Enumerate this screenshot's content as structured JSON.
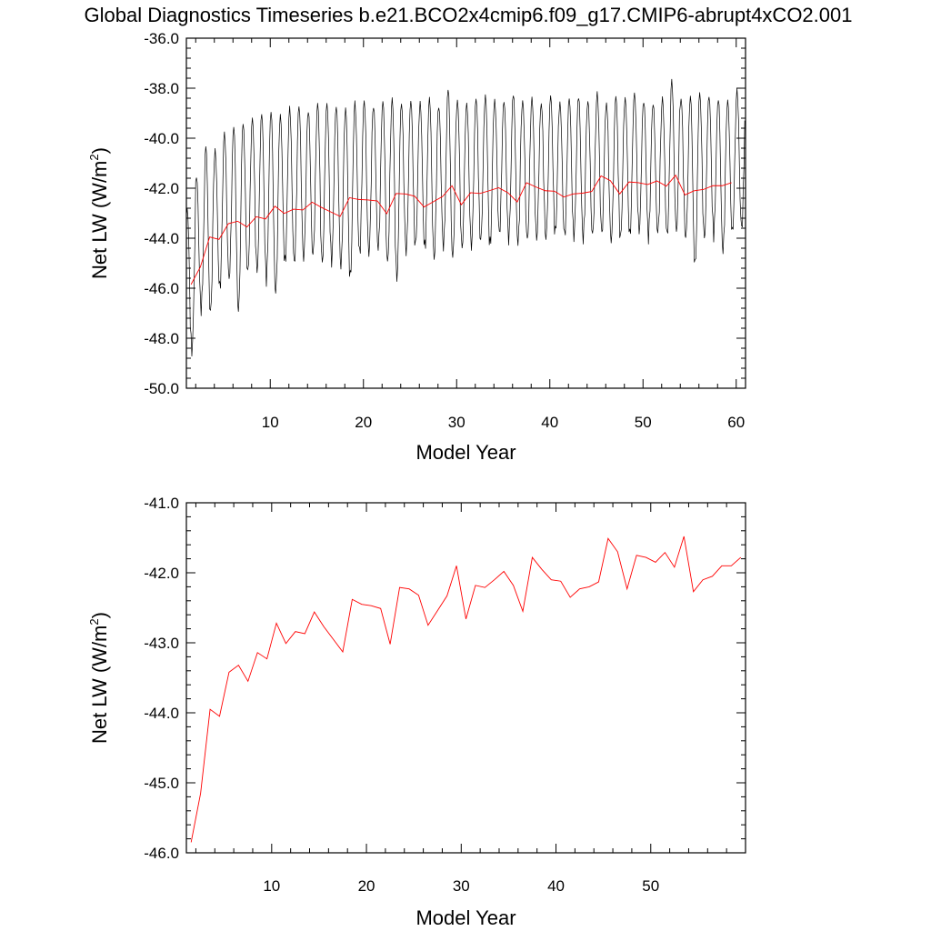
{
  "title": "Global Diagnostics Timeseries b.e21.BCO2x4cmip6.f09_g17.CMIP6-abrupt4xCO2.001",
  "colors": {
    "monthly": "#000000",
    "annual": "#ff0000",
    "axes": "#000000"
  },
  "chart_data": [
    {
      "type": "line",
      "xlabel": "Model Year",
      "ylabel_main": "Net LW (W/m",
      "ylabel_sup": "2",
      "ylabel_close": ")",
      "xlim": [
        1,
        61
      ],
      "ylim": [
        -50,
        -36
      ],
      "xticks": [
        10,
        20,
        30,
        40,
        50,
        60
      ],
      "xtick_labels": [
        "10",
        "20",
        "30",
        "40",
        "50",
        "60"
      ],
      "yticks": [
        -50,
        -48,
        -46,
        -44,
        -42,
        -40,
        -38,
        -36
      ],
      "ytick_labels": [
        "-50.0",
        "-48.0",
        "-46.0",
        "-44.0",
        "-42.0",
        "-40.0",
        "-38.0",
        "-36.0"
      ],
      "grid": false,
      "series": [
        {
          "kind": "monthly",
          "color": "#000000",
          "start_year": 1,
          "peaks": [
            -42.8,
            -41.5,
            -40.3,
            -40.5,
            -39.8,
            -39.5,
            -39.4,
            -39.2,
            -39.0,
            -38.9,
            -39.1,
            -38.8,
            -38.7,
            -38.9,
            -38.6,
            -38.6,
            -38.7,
            -38.8,
            -38.6,
            -38.5,
            -38.7,
            -38.5,
            -38.4,
            -38.6,
            -38.5,
            -38.6,
            -38.4,
            -38.7,
            -38.0,
            -38.5,
            -38.6,
            -38.4,
            -38.3,
            -38.5,
            -38.5,
            -38.2,
            -38.5,
            -38.4,
            -38.6,
            -38.3,
            -38.6,
            -38.4,
            -38.3,
            -38.5,
            -38.2,
            -38.6,
            -38.3,
            -38.4,
            -38.2,
            -38.5,
            -38.6,
            -38.4,
            -37.7,
            -38.4,
            -38.3,
            -38.2,
            -38.3,
            -38.4,
            -38.5,
            -38.1
          ],
          "troughs": [
            -48.5,
            -46.8,
            -47.0,
            -46.0,
            -45.6,
            -46.9,
            -45.4,
            -45.3,
            -45.6,
            -46.2,
            -45.0,
            -45.0,
            -44.8,
            -44.7,
            -45.0,
            -44.9,
            -45.1,
            -45.6,
            -44.6,
            -44.6,
            -44.4,
            -45.0,
            -45.6,
            -44.5,
            -44.3,
            -44.4,
            -44.8,
            -44.3,
            -44.8,
            -44.4,
            -44.3,
            -44.1,
            -44.3,
            -43.8,
            -44.0,
            -44.2,
            -44.1,
            -44.0,
            -44.0,
            -43.8,
            -43.9,
            -43.9,
            -44.0,
            -43.9,
            -43.8,
            -44.1,
            -44.0,
            -43.9,
            -43.7,
            -43.9,
            -43.8,
            -43.9,
            -43.7,
            -44.0,
            -45.1,
            -44.0,
            -43.8,
            -44.5,
            -43.8,
            -43.6
          ]
        },
        {
          "kind": "annual",
          "color": "#ff0000",
          "x": [
            1.5,
            2.5,
            3.5,
            4.5,
            5.5,
            6.5,
            7.5,
            8.5,
            9.5,
            10.5,
            11.5,
            12.5,
            13.5,
            14.5,
            15.5,
            16.5,
            17.5,
            18.5,
            19.5,
            20.5,
            21.5,
            22.5,
            23.5,
            24.5,
            25.5,
            26.5,
            27.5,
            28.5,
            29.5,
            30.5,
            31.5,
            32.5,
            33.5,
            34.5,
            35.5,
            36.5,
            37.5,
            38.5,
            39.5,
            40.5,
            41.5,
            42.5,
            43.5,
            44.5,
            45.5,
            46.5,
            47.5,
            48.5,
            49.5,
            50.5,
            51.5,
            52.5,
            53.5,
            54.5,
            55.5,
            56.5,
            57.5,
            58.5,
            59.5
          ],
          "y": [
            -45.85,
            -45.15,
            -43.95,
            -44.05,
            -43.42,
            -43.32,
            -43.55,
            -43.14,
            -43.23,
            -42.72,
            -43.01,
            -42.84,
            -42.87,
            -42.56,
            -42.77,
            -42.95,
            -43.13,
            -42.38,
            -42.45,
            -42.47,
            -42.51,
            -43.02,
            -42.21,
            -42.23,
            -42.32,
            -42.75,
            -42.54,
            -42.33,
            -41.9,
            -42.66,
            -42.18,
            -42.21,
            -42.1,
            -41.98,
            -42.18,
            -42.55,
            -41.78,
            -41.95,
            -42.1,
            -42.12,
            -42.35,
            -42.23,
            -42.2,
            -42.13,
            -41.51,
            -41.7,
            -42.23,
            -41.75,
            -41.78,
            -41.85,
            -41.71,
            -41.92,
            -41.48,
            -42.27,
            -42.1,
            -42.05,
            -41.9,
            -41.9,
            -41.78
          ]
        }
      ]
    },
    {
      "type": "line",
      "xlabel": "Model Year",
      "ylabel_main": "Net LW (W/m",
      "ylabel_sup": "2",
      "ylabel_close": ")",
      "xlim": [
        1,
        60
      ],
      "ylim": [
        -46,
        -41
      ],
      "xticks": [
        10,
        20,
        30,
        40,
        50
      ],
      "xtick_labels": [
        "10",
        "20",
        "30",
        "40",
        "50"
      ],
      "yticks": [
        -46,
        -45,
        -44,
        -43,
        -42,
        -41
      ],
      "ytick_labels": [
        "-46.0",
        "-45.0",
        "-44.0",
        "-43.0",
        "-42.0",
        "-41.0"
      ],
      "grid": false,
      "series": [
        {
          "kind": "annual",
          "color": "#ff0000",
          "x": [
            1.5,
            2.5,
            3.5,
            4.5,
            5.5,
            6.5,
            7.5,
            8.5,
            9.5,
            10.5,
            11.5,
            12.5,
            13.5,
            14.5,
            15.5,
            16.5,
            17.5,
            18.5,
            19.5,
            20.5,
            21.5,
            22.5,
            23.5,
            24.5,
            25.5,
            26.5,
            27.5,
            28.5,
            29.5,
            30.5,
            31.5,
            32.5,
            33.5,
            34.5,
            35.5,
            36.5,
            37.5,
            38.5,
            39.5,
            40.5,
            41.5,
            42.5,
            43.5,
            44.5,
            45.5,
            46.5,
            47.5,
            48.5,
            49.5,
            50.5,
            51.5,
            52.5,
            53.5,
            54.5,
            55.5,
            56.5,
            57.5,
            58.5,
            59.5
          ],
          "y": [
            -45.85,
            -45.15,
            -43.95,
            -44.05,
            -43.42,
            -43.32,
            -43.55,
            -43.14,
            -43.23,
            -42.72,
            -43.01,
            -42.84,
            -42.87,
            -42.56,
            -42.77,
            -42.95,
            -43.13,
            -42.38,
            -42.45,
            -42.47,
            -42.51,
            -43.02,
            -42.21,
            -42.23,
            -42.32,
            -42.75,
            -42.54,
            -42.33,
            -41.9,
            -42.66,
            -42.18,
            -42.21,
            -42.1,
            -41.98,
            -42.18,
            -42.55,
            -41.78,
            -41.95,
            -42.1,
            -42.12,
            -42.35,
            -42.23,
            -42.2,
            -42.13,
            -41.51,
            -41.7,
            -42.23,
            -41.75,
            -41.78,
            -41.85,
            -41.71,
            -41.92,
            -41.48,
            -42.27,
            -42.1,
            -42.05,
            -41.9,
            -41.9,
            -41.78
          ]
        }
      ]
    }
  ]
}
